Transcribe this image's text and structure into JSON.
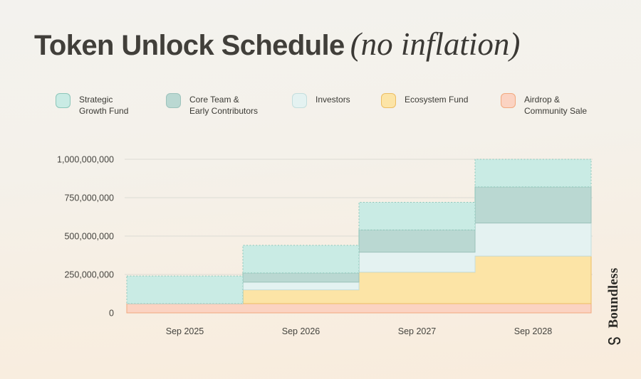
{
  "title": {
    "main": "Token Unlock Schedule",
    "suffix": "(no inflation)"
  },
  "brand": {
    "name": "Boundless",
    "logo_icon": "boundless-interlocked-curves-icon",
    "text_color": "#2b2a26"
  },
  "legend": [
    {
      "id": "strategic-growth-fund",
      "label": "Strategic\nGrowth Fund"
    },
    {
      "id": "core-team-early-contributors",
      "label": "Core Team &\nEarly Contributors"
    },
    {
      "id": "investors",
      "label": "Investors"
    },
    {
      "id": "ecosystem-fund",
      "label": "Ecosystem Fund"
    },
    {
      "id": "airdrop-community-sale",
      "label": "Airdrop &\nCommunity Sale"
    }
  ],
  "chart_data": {
    "type": "area",
    "variant": "stepped-stacked-cumulative",
    "grid": true,
    "legend_position": "top",
    "x": [
      "Sep 2025",
      "Sep 2026",
      "Sep 2027",
      "Sep 2028"
    ],
    "xlabel": "",
    "ylabel": "",
    "ylim": [
      0,
      1000000000
    ],
    "yticks": [
      {
        "value": 0,
        "label": "0"
      },
      {
        "value": 250000000,
        "label": "250,000,000"
      },
      {
        "value": 500000000,
        "label": "500,000,000"
      },
      {
        "value": 750000000,
        "label": "750,000,000"
      },
      {
        "value": 1000000000,
        "label": "1,000,000,000"
      }
    ],
    "series_note": "values are cumulative unlocked tokens per category at each date; series listed bottom of stack first",
    "series": [
      {
        "id": "airdrop-community-sale",
        "name": "Airdrop & Community Sale",
        "values": [
          60000000,
          60000000,
          60000000,
          60000000
        ],
        "fill": "#fbd3c2",
        "stroke": "#f2a87e",
        "stroke_style": "solid"
      },
      {
        "id": "ecosystem-fund",
        "name": "Ecosystem Fund",
        "values": [
          0,
          90000000,
          205000000,
          310000000
        ],
        "fill": "#fce4a6",
        "stroke": "#ecbd62",
        "stroke_style": "solid"
      },
      {
        "id": "investors",
        "name": "Investors",
        "values": [
          0,
          50000000,
          130000000,
          215000000
        ],
        "fill": "#e4f2f1",
        "stroke": "#c3dedd",
        "stroke_style": "solid"
      },
      {
        "id": "core-team-early-contributors",
        "name": "Core Team & Early Contributors",
        "values": [
          0,
          60000000,
          145000000,
          235000000
        ],
        "fill": "#bad8d2",
        "stroke": "#9cc2bb",
        "stroke_style": "solid"
      },
      {
        "id": "strategic-growth-fund",
        "name": "Strategic Growth Fund",
        "values": [
          180000000,
          180000000,
          180000000,
          180000000
        ],
        "fill": "#c9ebe4",
        "stroke": "#8cc6b9",
        "stroke_style": "dotted"
      }
    ],
    "colors": {
      "grid": "#dcdbd4",
      "axis_text": "#45443f"
    }
  }
}
